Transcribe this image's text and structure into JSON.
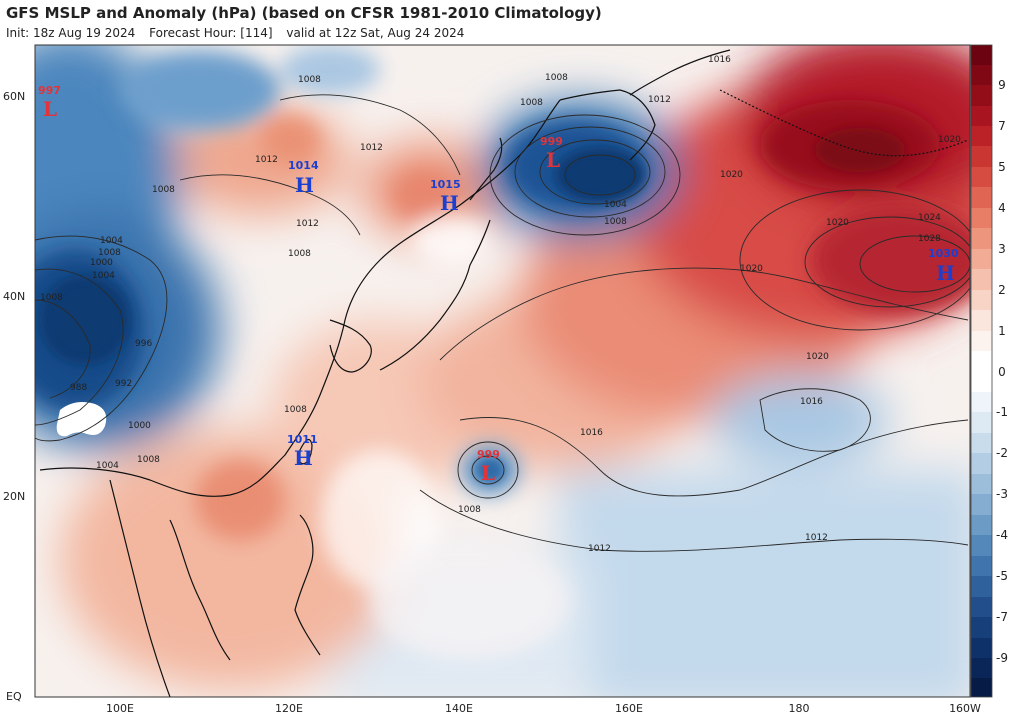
{
  "header": {
    "title": "GFS MSLP and Anomaly (hPa) (based on CFSR 1981-2010 Climatology)",
    "init": "Init: 18z Aug 19 2024",
    "forecast_hour": "Forecast Hour: [114]",
    "valid": "valid at 12z Sat, Aug 24 2024"
  },
  "axes": {
    "lon_ticks": [
      "100E",
      "120E",
      "140E",
      "160E",
      "180",
      "160W"
    ],
    "lat_ticks": [
      "60N",
      "40N",
      "20N",
      "EQ"
    ]
  },
  "colorbar": {
    "labels": [
      "9",
      "7",
      "5",
      "4",
      "3",
      "2",
      "1",
      "0",
      "-1",
      "-2",
      "-3",
      "-4",
      "-5",
      "-7",
      "-9"
    ]
  },
  "pressure_centers": [
    {
      "type": "L",
      "value": "997"
    },
    {
      "type": "H",
      "value": "1014"
    },
    {
      "type": "H",
      "value": "1015"
    },
    {
      "type": "L",
      "value": "999"
    },
    {
      "type": "H",
      "value": "1030"
    },
    {
      "type": "H",
      "value": "1011"
    },
    {
      "type": "L",
      "value": "999"
    }
  ],
  "isobar_labels": [
    "1008",
    "1012",
    "1008",
    "1012",
    "1008",
    "1004",
    "1008",
    "1012",
    "1008",
    "1000",
    "1004",
    "1008",
    "996",
    "988",
    "992",
    "1000",
    "1004",
    "1008",
    "1008",
    "1008",
    "1004",
    "1008",
    "1016",
    "1012",
    "1020",
    "1020",
    "1020",
    "1024",
    "1028",
    "1020",
    "1020",
    "1016",
    "1016",
    "1012",
    "1012",
    "1008"
  ],
  "colors": {
    "positive_strong": "#8e0c1a",
    "positive_mid": "#d9534a",
    "positive_light": "#f3b49c",
    "neutral": "#ffffff",
    "negative_light": "#a9c9e4",
    "negative_mid": "#3f7fb9",
    "negative_strong": "#0c3a72",
    "low_label": "#e0343a",
    "high_label": "#1b3fd0"
  }
}
